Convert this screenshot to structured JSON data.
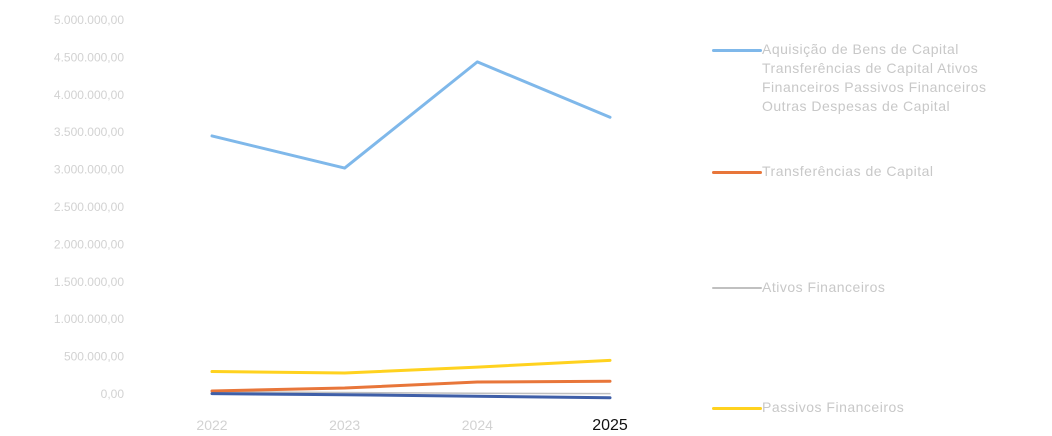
{
  "chart_data": {
    "type": "line",
    "x": [
      "2022",
      "2023",
      "2024",
      "2025"
    ],
    "yticks": [
      "5.000.000,00",
      "4.500.000,00",
      "4.000.000,00",
      "3.500.000,00",
      "3.000.000,00",
      "2.500.000,00",
      "2.000.000,00",
      "1.500.000,00",
      "1.000.000,00",
      "500.000,00",
      "0,00"
    ],
    "ylim": [
      0,
      5000000
    ],
    "grid": false,
    "legend_position": "right",
    "series": [
      {
        "name": "Aquisição de Bens de Capital Transferências de Capital Ativos Financeiros Passivos Financeiros Outras Despesas de Capital",
        "color": "#7fb8ea",
        "values": [
          3450000,
          3020000,
          4440000,
          3700000
        ]
      },
      {
        "name": "Transferências de Capital",
        "color": "#e8763a",
        "values": [
          40000,
          80000,
          160000,
          170000
        ]
      },
      {
        "name": "Ativos Financeiros",
        "color": "#c0c0c0",
        "values": [
          30000,
          20000,
          10000,
          5000
        ]
      },
      {
        "name": "Passivos Financeiros",
        "color": "#ffd21f",
        "values": [
          300000,
          280000,
          360000,
          450000
        ]
      },
      {
        "name": "",
        "color": "#3f5fa8",
        "values": [
          5000,
          -10000,
          -30000,
          -50000
        ]
      }
    ]
  }
}
